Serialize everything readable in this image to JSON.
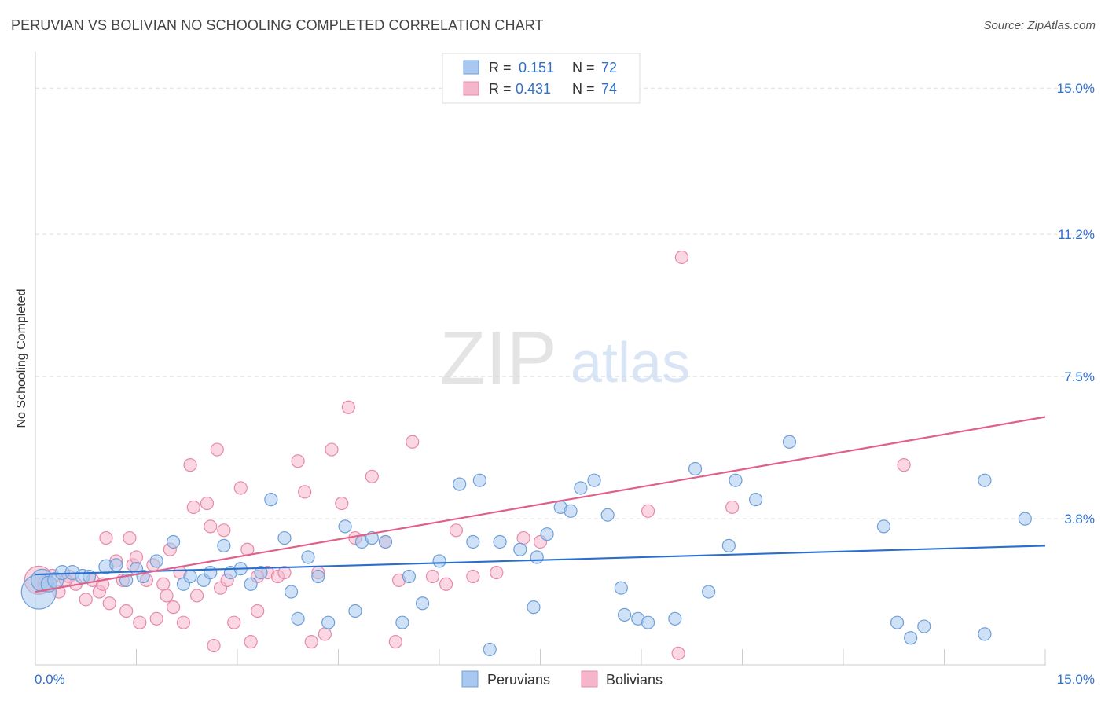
{
  "title": "PERUVIAN VS BOLIVIAN NO SCHOOLING COMPLETED CORRELATION CHART",
  "source": "Source: ZipAtlas.com",
  "watermark": {
    "zip": "ZIP",
    "atlas": "atlas"
  },
  "colors": {
    "peruvian_fill": "#a8c8ef",
    "peruvian_stroke": "#6e9fd8",
    "peruvian_line": "#2a6fcd",
    "bolivian_fill": "#f5b6cb",
    "bolivian_stroke": "#e68aa9",
    "bolivian_line": "#e0608a",
    "tick_label": "#2f6fcc",
    "grid": "#dddddd"
  },
  "legend": {
    "rows": [
      {
        "r_label": "R =",
        "r_value": "0.151",
        "n_label": "N =",
        "n_value": "72"
      },
      {
        "r_label": "R =",
        "r_value": "0.431",
        "n_label": "N =",
        "n_value": "74"
      }
    ]
  },
  "bottom_legend": {
    "peruvians": "Peruvians",
    "bolivians": "Bolivians"
  },
  "chart_data": {
    "type": "scatter",
    "title": "PERUVIAN VS BOLIVIAN NO SCHOOLING COMPLETED CORRELATION CHART",
    "xlabel": "",
    "ylabel": "No Schooling Completed",
    "xlim": [
      0,
      15
    ],
    "ylim": [
      0,
      15.7
    ],
    "x_tick_labels": [
      "0.0%",
      "15.0%"
    ],
    "y_ticks": [
      3.8,
      7.5,
      11.2,
      15.0
    ],
    "y_tick_labels": [
      "3.8%",
      "7.5%",
      "11.2%",
      "15.0%"
    ],
    "grid": true,
    "legend_position": "top-center",
    "series": [
      {
        "name": "Peruvians",
        "R": 0.151,
        "N": 72,
        "trend": [
          [
            0,
            2.35
          ],
          [
            15,
            3.1
          ]
        ],
        "points": [
          [
            0.05,
            1.9,
            22
          ],
          [
            0.1,
            2.2,
            14
          ],
          [
            0.2,
            2.1,
            10
          ],
          [
            0.3,
            2.2,
            10
          ],
          [
            0.4,
            2.4,
            9
          ],
          [
            0.55,
            2.4,
            9
          ],
          [
            0.7,
            2.3,
            9
          ],
          [
            1.05,
            2.55,
            9
          ],
          [
            1.2,
            2.6,
            8
          ],
          [
            1.35,
            2.2,
            8
          ],
          [
            1.5,
            2.5,
            8
          ],
          [
            1.8,
            2.7,
            8
          ],
          [
            2.05,
            3.2,
            8
          ],
          [
            2.2,
            2.1,
            8
          ],
          [
            2.3,
            2.3,
            8
          ],
          [
            2.5,
            2.2,
            8
          ],
          [
            2.6,
            2.4,
            8
          ],
          [
            2.8,
            3.1,
            8
          ],
          [
            2.9,
            2.4,
            8
          ],
          [
            3.05,
            2.5,
            8
          ],
          [
            3.2,
            2.1,
            8
          ],
          [
            3.35,
            2.4,
            8
          ],
          [
            3.5,
            4.3,
            8
          ],
          [
            3.7,
            3.3,
            8
          ],
          [
            3.8,
            1.9,
            8
          ],
          [
            3.9,
            1.2,
            8
          ],
          [
            4.05,
            2.8,
            8
          ],
          [
            4.2,
            2.3,
            8
          ],
          [
            4.35,
            1.1,
            8
          ],
          [
            4.6,
            3.6,
            8
          ],
          [
            4.75,
            1.4,
            8
          ],
          [
            4.85,
            3.2,
            8
          ],
          [
            5.0,
            3.3,
            8
          ],
          [
            5.2,
            3.2,
            8
          ],
          [
            5.45,
            1.1,
            8
          ],
          [
            5.55,
            2.3,
            8
          ],
          [
            5.75,
            1.6,
            8
          ],
          [
            6.0,
            2.7,
            8
          ],
          [
            6.3,
            4.7,
            8
          ],
          [
            6.5,
            3.2,
            8
          ],
          [
            6.6,
            4.8,
            8
          ],
          [
            6.75,
            0.4,
            8
          ],
          [
            6.9,
            3.2,
            8
          ],
          [
            7.2,
            3.0,
            8
          ],
          [
            7.4,
            1.5,
            8
          ],
          [
            7.45,
            2.8,
            8
          ],
          [
            7.6,
            3.4,
            8
          ],
          [
            7.8,
            4.1,
            8
          ],
          [
            7.95,
            4.0,
            8
          ],
          [
            8.1,
            4.6,
            8
          ],
          [
            8.3,
            4.8,
            8
          ],
          [
            8.5,
            3.9,
            8
          ],
          [
            8.7,
            2.0,
            8
          ],
          [
            8.75,
            1.3,
            8
          ],
          [
            8.95,
            1.2,
            8
          ],
          [
            9.1,
            1.1,
            8
          ],
          [
            9.5,
            1.2,
            8
          ],
          [
            9.8,
            5.1,
            8
          ],
          [
            10.0,
            1.9,
            8
          ],
          [
            10.3,
            3.1,
            8
          ],
          [
            10.4,
            4.8,
            8
          ],
          [
            10.7,
            4.3,
            8
          ],
          [
            11.2,
            5.8,
            8
          ],
          [
            12.6,
            3.6,
            8
          ],
          [
            12.8,
            1.1,
            8
          ],
          [
            13.0,
            0.7,
            8
          ],
          [
            13.2,
            1.0,
            8
          ],
          [
            14.1,
            0.8,
            8
          ],
          [
            14.1,
            4.8,
            8
          ],
          [
            14.7,
            3.8,
            8
          ],
          [
            1.6,
            2.3,
            8
          ],
          [
            0.8,
            2.3,
            8
          ]
        ]
      },
      {
        "name": "Bolivians",
        "R": 0.431,
        "N": 74,
        "trend": [
          [
            0,
            1.9
          ],
          [
            15,
            6.45
          ]
        ],
        "points": [
          [
            0.05,
            2.2,
            18
          ],
          [
            0.15,
            2.1,
            10
          ],
          [
            0.25,
            2.3,
            9
          ],
          [
            0.35,
            1.9,
            8
          ],
          [
            0.5,
            2.3,
            8
          ],
          [
            0.6,
            2.1,
            8
          ],
          [
            0.75,
            1.7,
            8
          ],
          [
            0.85,
            2.2,
            8
          ],
          [
            0.95,
            1.9,
            8
          ],
          [
            1.05,
            3.3,
            8
          ],
          [
            1.1,
            1.6,
            8
          ],
          [
            1.2,
            2.7,
            8
          ],
          [
            1.3,
            2.2,
            8
          ],
          [
            1.35,
            1.4,
            8
          ],
          [
            1.4,
            3.3,
            8
          ],
          [
            1.45,
            2.6,
            8
          ],
          [
            1.5,
            2.8,
            8
          ],
          [
            1.55,
            1.1,
            8
          ],
          [
            1.65,
            2.2,
            8
          ],
          [
            1.75,
            2.6,
            8
          ],
          [
            1.8,
            1.2,
            8
          ],
          [
            1.9,
            2.1,
            8
          ],
          [
            1.95,
            1.8,
            8
          ],
          [
            2.0,
            3.0,
            8
          ],
          [
            2.05,
            1.5,
            8
          ],
          [
            2.15,
            2.4,
            8
          ],
          [
            2.2,
            1.1,
            8
          ],
          [
            2.3,
            5.2,
            8
          ],
          [
            2.35,
            4.1,
            8
          ],
          [
            2.4,
            1.8,
            8
          ],
          [
            2.55,
            4.2,
            8
          ],
          [
            2.6,
            3.6,
            8
          ],
          [
            2.65,
            0.5,
            8
          ],
          [
            2.7,
            5.6,
            8
          ],
          [
            2.75,
            2.0,
            8
          ],
          [
            2.8,
            3.5,
            8
          ],
          [
            2.85,
            2.2,
            8
          ],
          [
            2.95,
            1.1,
            8
          ],
          [
            3.05,
            4.6,
            8
          ],
          [
            3.15,
            3.0,
            8
          ],
          [
            3.2,
            0.6,
            8
          ],
          [
            3.3,
            1.4,
            8
          ],
          [
            3.45,
            2.4,
            8
          ],
          [
            3.6,
            2.3,
            8
          ],
          [
            3.7,
            2.4,
            8
          ],
          [
            3.9,
            5.3,
            8
          ],
          [
            4.0,
            4.5,
            8
          ],
          [
            4.1,
            0.6,
            8
          ],
          [
            4.2,
            2.4,
            8
          ],
          [
            4.3,
            0.8,
            8
          ],
          [
            4.4,
            5.6,
            8
          ],
          [
            4.55,
            4.2,
            8
          ],
          [
            4.65,
            6.7,
            8
          ],
          [
            4.75,
            3.3,
            8
          ],
          [
            5.0,
            4.9,
            8
          ],
          [
            5.2,
            3.2,
            8
          ],
          [
            5.35,
            0.6,
            8
          ],
          [
            5.4,
            2.2,
            8
          ],
          [
            5.6,
            5.8,
            8
          ],
          [
            5.9,
            2.3,
            8
          ],
          [
            6.25,
            3.5,
            8
          ],
          [
            6.5,
            2.3,
            8
          ],
          [
            6.85,
            2.4,
            8
          ],
          [
            7.25,
            3.3,
            8
          ],
          [
            7.5,
            3.2,
            8
          ],
          [
            9.1,
            4.0,
            8
          ],
          [
            9.6,
            10.6,
            8
          ],
          [
            10.35,
            4.1,
            8
          ],
          [
            12.9,
            5.2,
            8
          ],
          [
            9.55,
            0.3,
            8
          ],
          [
            0.45,
            2.2,
            8
          ],
          [
            1.0,
            2.1,
            8
          ],
          [
            3.3,
            2.3,
            8
          ],
          [
            6.1,
            2.1,
            8
          ]
        ]
      }
    ]
  }
}
